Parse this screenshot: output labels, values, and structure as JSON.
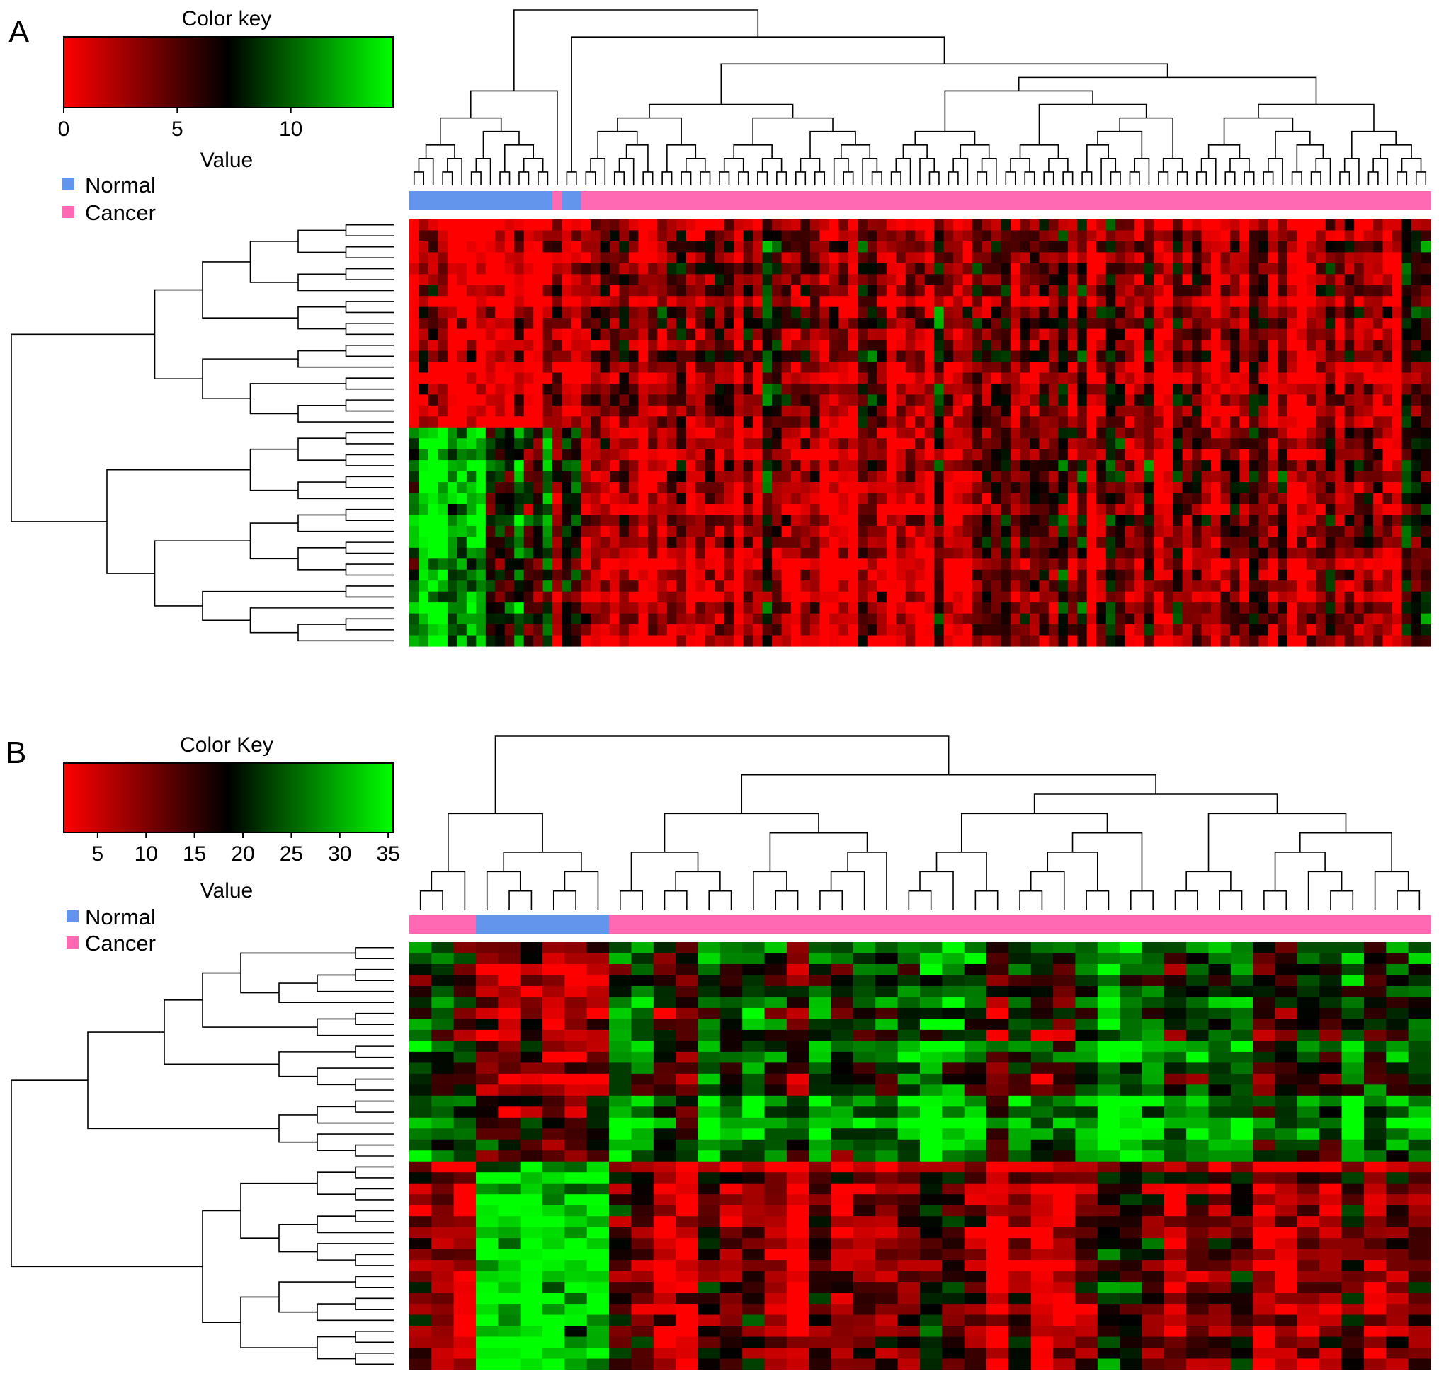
{
  "panels": [
    {
      "label": "A",
      "color_key": {
        "title": "Color key",
        "value_label": "Value",
        "ticks": [
          "0",
          "5",
          "10"
        ],
        "tick_values": [
          0,
          5,
          10
        ],
        "range": [
          0,
          14.5
        ],
        "colors": [
          "#ff0000",
          "#000000",
          "#00ff00"
        ]
      },
      "legend": [
        {
          "name": "Normal",
          "color": "#6495ed"
        },
        {
          "name": "Cancer",
          "color": "#ff69b4"
        }
      ],
      "n_samples": 107,
      "n_genes": 39,
      "sample_groups": [
        {
          "group": "Normal",
          "count": 15
        },
        {
          "group": "Cancer",
          "count": 1
        },
        {
          "group": "Normal",
          "count": 2
        },
        {
          "group": "Cancer",
          "count": 89
        }
      ],
      "gene_clusters": [
        {
          "rows": 19,
          "note": "red in normal, mixed in cancer"
        },
        {
          "rows": 20,
          "note": "green in normal, red in cancer"
        }
      ]
    },
    {
      "label": "B",
      "color_key": {
        "title": "Color Key",
        "value_label": "Value",
        "ticks": [
          "5",
          "10",
          "15",
          "20",
          "25",
          "30",
          "35"
        ],
        "tick_values": [
          5,
          10,
          15,
          20,
          25,
          30,
          35
        ],
        "range": [
          1.5,
          35.5
        ],
        "colors": [
          "#ff0000",
          "#000000",
          "#00ff00"
        ]
      },
      "legend": [
        {
          "name": "Normal",
          "color": "#6495ed"
        },
        {
          "name": "Cancer",
          "color": "#ff69b4"
        }
      ],
      "n_samples": 46,
      "n_genes": 39,
      "sample_groups": [
        {
          "group": "Cancer",
          "count": 3
        },
        {
          "group": "Normal",
          "count": 6
        },
        {
          "group": "Cancer",
          "count": 37
        }
      ],
      "gene_clusters": [
        {
          "rows": 14,
          "note": "red in normal, green/dark in cancer"
        },
        {
          "rows": 6,
          "note": "dark in normal, green in cancer"
        },
        {
          "rows": 19,
          "note": "green in normal, red in cancer"
        }
      ]
    }
  ],
  "chart_data": [
    {
      "type": "heatmap",
      "panel": "A",
      "title": "",
      "xlabel": "",
      "ylabel": "",
      "color_key_title": "Color key",
      "value_range": [
        0,
        14.5
      ],
      "series": [
        {
          "name": "Normal",
          "samples": 17
        },
        {
          "name": "Cancer",
          "samples": 90
        }
      ]
    },
    {
      "type": "heatmap",
      "panel": "B",
      "title": "",
      "xlabel": "",
      "ylabel": "",
      "color_key_title": "Color Key",
      "value_range": [
        1.5,
        35.5
      ],
      "series": [
        {
          "name": "Normal",
          "samples": 6
        },
        {
          "name": "Cancer",
          "samples": 40
        }
      ]
    }
  ]
}
